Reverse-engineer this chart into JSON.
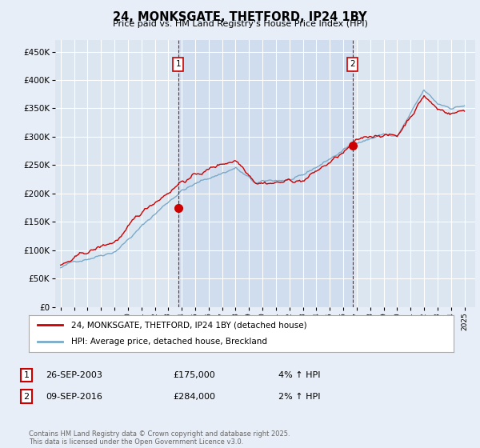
{
  "title": "24, MONKSGATE, THETFORD, IP24 1BY",
  "subtitle": "Price paid vs. HM Land Registry's House Price Index (HPI)",
  "ytick_values": [
    0,
    50000,
    100000,
    150000,
    200000,
    250000,
    300000,
    350000,
    400000,
    450000
  ],
  "ylim": [
    0,
    470000
  ],
  "xlim_start": 1994.6,
  "xlim_end": 2025.8,
  "background_color": "#e8eef7",
  "plot_bg_color": "#dce6f1",
  "shade_color": "#c8d8ed",
  "grid_color": "#ffffff",
  "red_line_color": "#cc0000",
  "blue_line_color": "#7aaac8",
  "marker1_x": 2003.73,
  "marker1_y": 175000,
  "marker2_x": 2016.69,
  "marker2_y": 284000,
  "marker_vline_color": "#cc0000",
  "legend_label_red": "24, MONKSGATE, THETFORD, IP24 1BY (detached house)",
  "legend_label_blue": "HPI: Average price, detached house, Breckland",
  "table_row1": [
    "1",
    "26-SEP-2003",
    "£175,000",
    "4% ↑ HPI"
  ],
  "table_row2": [
    "2",
    "09-SEP-2016",
    "£284,000",
    "2% ↑ HPI"
  ],
  "footer": "Contains HM Land Registry data © Crown copyright and database right 2025.\nThis data is licensed under the Open Government Licence v3.0.",
  "xtick_years": [
    1995,
    1996,
    1997,
    1998,
    1999,
    2000,
    2001,
    2002,
    2003,
    2004,
    2005,
    2006,
    2007,
    2008,
    2009,
    2010,
    2011,
    2012,
    2013,
    2014,
    2015,
    2016,
    2017,
    2018,
    2019,
    2020,
    2021,
    2022,
    2023,
    2024,
    2025
  ],
  "seed": 42
}
